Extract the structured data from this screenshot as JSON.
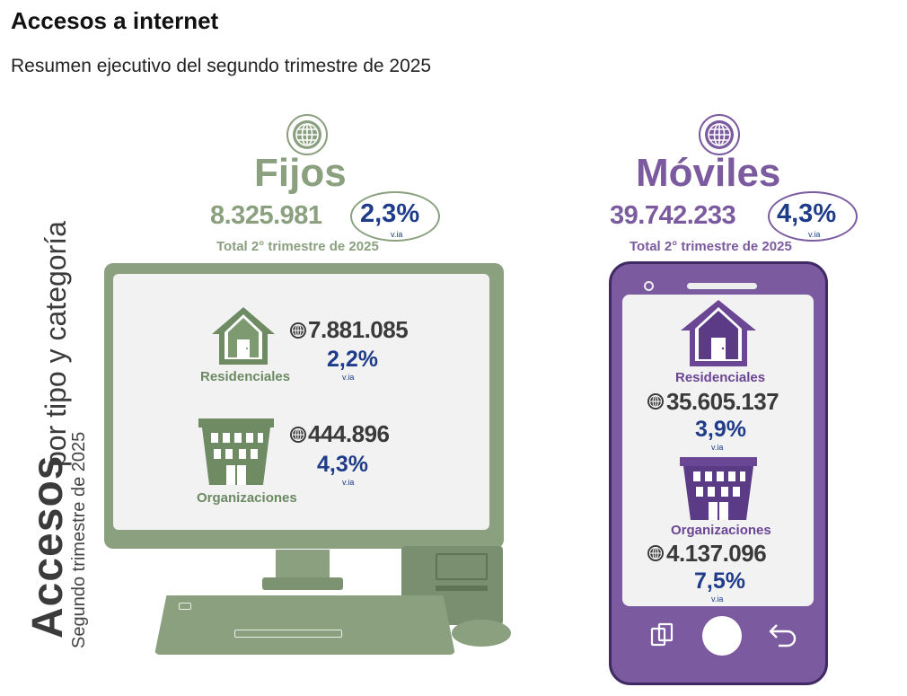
{
  "page": {
    "title": "Accesos a internet",
    "subtitle": "Resumen ejecutivo del segundo trimestre de 2025",
    "side_label_main": "Accesos",
    "side_label_rest": "por tipo y categoría",
    "side_label_sub": "Segundo trimestre de 2025"
  },
  "colors": {
    "fijos": "#8aa07f",
    "moviles": "#7b5aa0",
    "percent": "#1f3c8a"
  },
  "fijos": {
    "title": "Fijos",
    "total": "8.325.981",
    "total_pct": "2,3%",
    "total_via": "v.ia",
    "total_label": "Total 2° trimestre de 2025",
    "residenciales": {
      "label": "Residenciales",
      "value": "7.881.085",
      "pct": "2,2%",
      "via": "v.ia"
    },
    "organizaciones": {
      "label": "Organizaciones",
      "value": "444.896",
      "pct": "4,3%",
      "via": "v.ia"
    }
  },
  "moviles": {
    "title": "Móviles",
    "total": "39.742.233",
    "total_pct": "4,3%",
    "total_via": "v.ia",
    "total_label": "Total 2° trimestre de 2025",
    "residenciales": {
      "label": "Residenciales",
      "value": "35.605.137",
      "pct": "3,9%",
      "via": "v.ia"
    },
    "organizaciones": {
      "label": "Organizaciones",
      "value": "4.137.096",
      "pct": "7,5%",
      "via": "v.ia"
    }
  },
  "icons": {
    "globe": "globe-icon",
    "house": "house-icon",
    "building": "building-icon",
    "recent_apps": "recent-apps-icon",
    "back": "back-icon"
  }
}
